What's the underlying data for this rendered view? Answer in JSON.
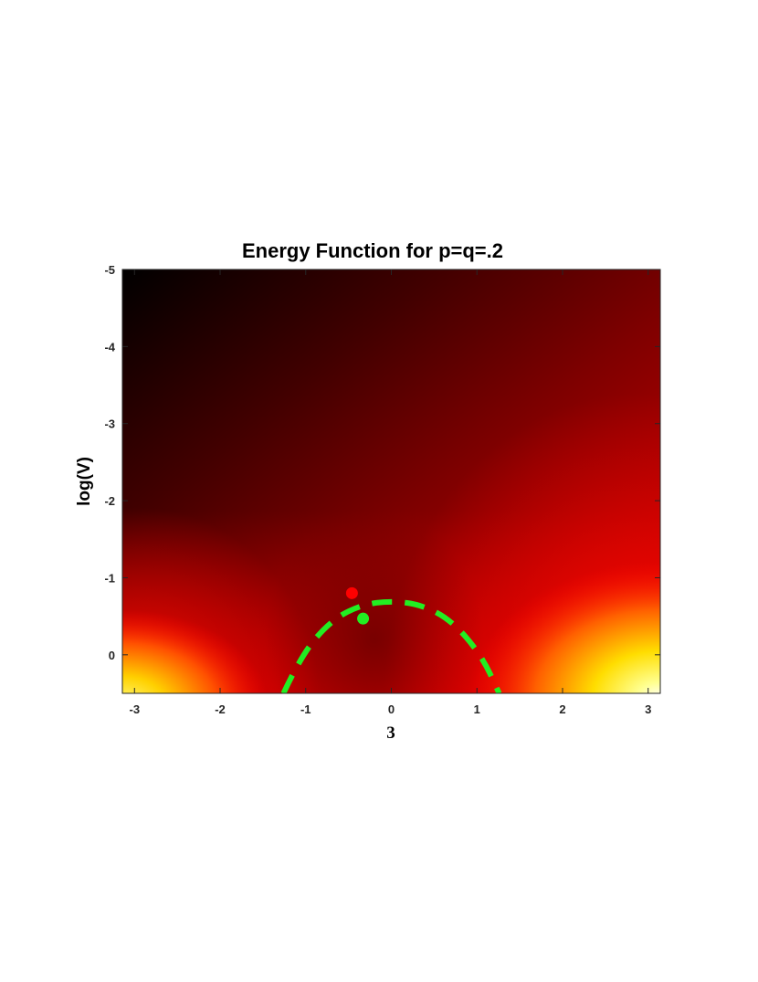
{
  "chart_data": {
    "type": "heatmap",
    "title": "Energy Function for p=q=.2",
    "xlabel": "3",
    "ylabel": "log(V)",
    "xlim": [
      -3.14159,
      3.14159
    ],
    "ylim": [
      -5,
      0.5
    ],
    "y_axis_reversed": true,
    "xticks": [
      -3,
      -2,
      -1,
      0,
      1,
      2,
      3
    ],
    "yticks": [
      -5,
      -4,
      -3,
      -2,
      -1,
      0
    ],
    "colormap": "hot",
    "colors": {
      "low": "#000000",
      "mid_low": "#7a0000",
      "mid": "#ff0000",
      "mid_high": "#ffff00",
      "high": "#ffffff",
      "boundary_curve": "#22ee22",
      "marker_red": "#ff0000",
      "marker_green": "#22ee22"
    },
    "series": [
      {
        "type": "dashed-curve",
        "points": [
          {
            "x": -1.26,
            "y": 0.5
          },
          {
            "x": -1.05,
            "y": 0.0
          },
          {
            "x": -0.7,
            "y": -0.45
          },
          {
            "x": -0.35,
            "y": -0.65
          },
          {
            "x": 0.0,
            "y": -0.7
          },
          {
            "x": 0.35,
            "y": -0.65
          },
          {
            "x": 0.7,
            "y": -0.45
          },
          {
            "x": 1.05,
            "y": 0.0
          },
          {
            "x": 1.26,
            "y": 0.5
          }
        ]
      },
      {
        "type": "point",
        "x": -0.46,
        "y": -0.8
      },
      {
        "type": "point",
        "x": -0.33,
        "y": -0.47
      }
    ]
  }
}
